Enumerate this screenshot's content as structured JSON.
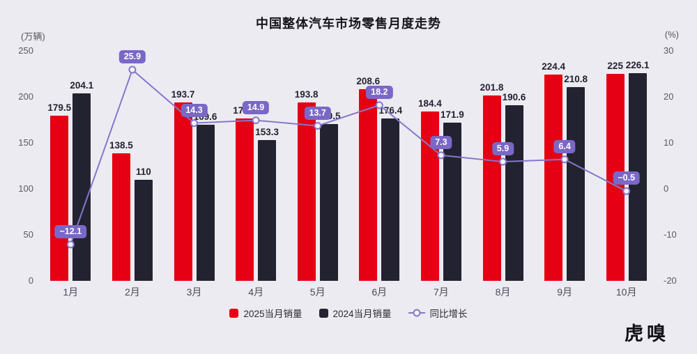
{
  "title": "中国整体汽车市场零售月度走势",
  "left_unit": "(万辆)",
  "right_unit": "(%)",
  "logo": "虎嗅",
  "chart_data": {
    "type": "combo",
    "subtype": "grouped-bar + line",
    "title": "中国整体汽车市场零售月度走势",
    "categories": [
      "1月",
      "2月",
      "3月",
      "4月",
      "5月",
      "6月",
      "7月",
      "8月",
      "9月",
      "10月"
    ],
    "series": [
      {
        "name": "2025当月销量",
        "type": "bar",
        "values": [
          179.5,
          138.5,
          193.7,
          176.2,
          193.8,
          208.6,
          184.4,
          201.8,
          224.4,
          225
        ],
        "labels": [
          "179.5",
          "138.5",
          "193.7",
          "176.2",
          "193.8",
          "208.6",
          "184.4",
          "201.8",
          "224.4",
          "225"
        ],
        "color": "#e60013",
        "axis": "left"
      },
      {
        "name": "2024当月销量",
        "type": "bar",
        "values": [
          204.1,
          110,
          169.6,
          153.3,
          170.5,
          176.4,
          171.9,
          190.6,
          210.8,
          226.1
        ],
        "labels": [
          "204.1",
          "110",
          "169.6",
          "153.3",
          "170.5",
          "176.4",
          "171.9",
          "190.6",
          "210.8",
          "226.1"
        ],
        "color": "#232230",
        "axis": "left"
      },
      {
        "name": "同比增长",
        "type": "line",
        "values": [
          -12.1,
          25.9,
          14.3,
          14.9,
          13.7,
          18.2,
          7.3,
          5.9,
          6.4,
          -0.5
        ],
        "labels": [
          "−12.1",
          "25.9",
          "14.3",
          "14.9",
          "13.7",
          "18.2",
          "7.3",
          "5.9",
          "6.4",
          "−0.5"
        ],
        "color": "#8577cd",
        "badge_color": "#7a68c6",
        "axis": "right"
      }
    ],
    "left_axis": {
      "unit": "万辆",
      "min": 0,
      "max": 250,
      "ticks": [
        "250",
        "200",
        "150",
        "100",
        "50",
        "0"
      ]
    },
    "right_axis": {
      "unit": "%",
      "min": -20,
      "max": 30,
      "ticks": [
        "30",
        "20",
        "10",
        "0",
        "-10",
        "-20"
      ]
    },
    "grid": false,
    "legend_position": "bottom"
  }
}
